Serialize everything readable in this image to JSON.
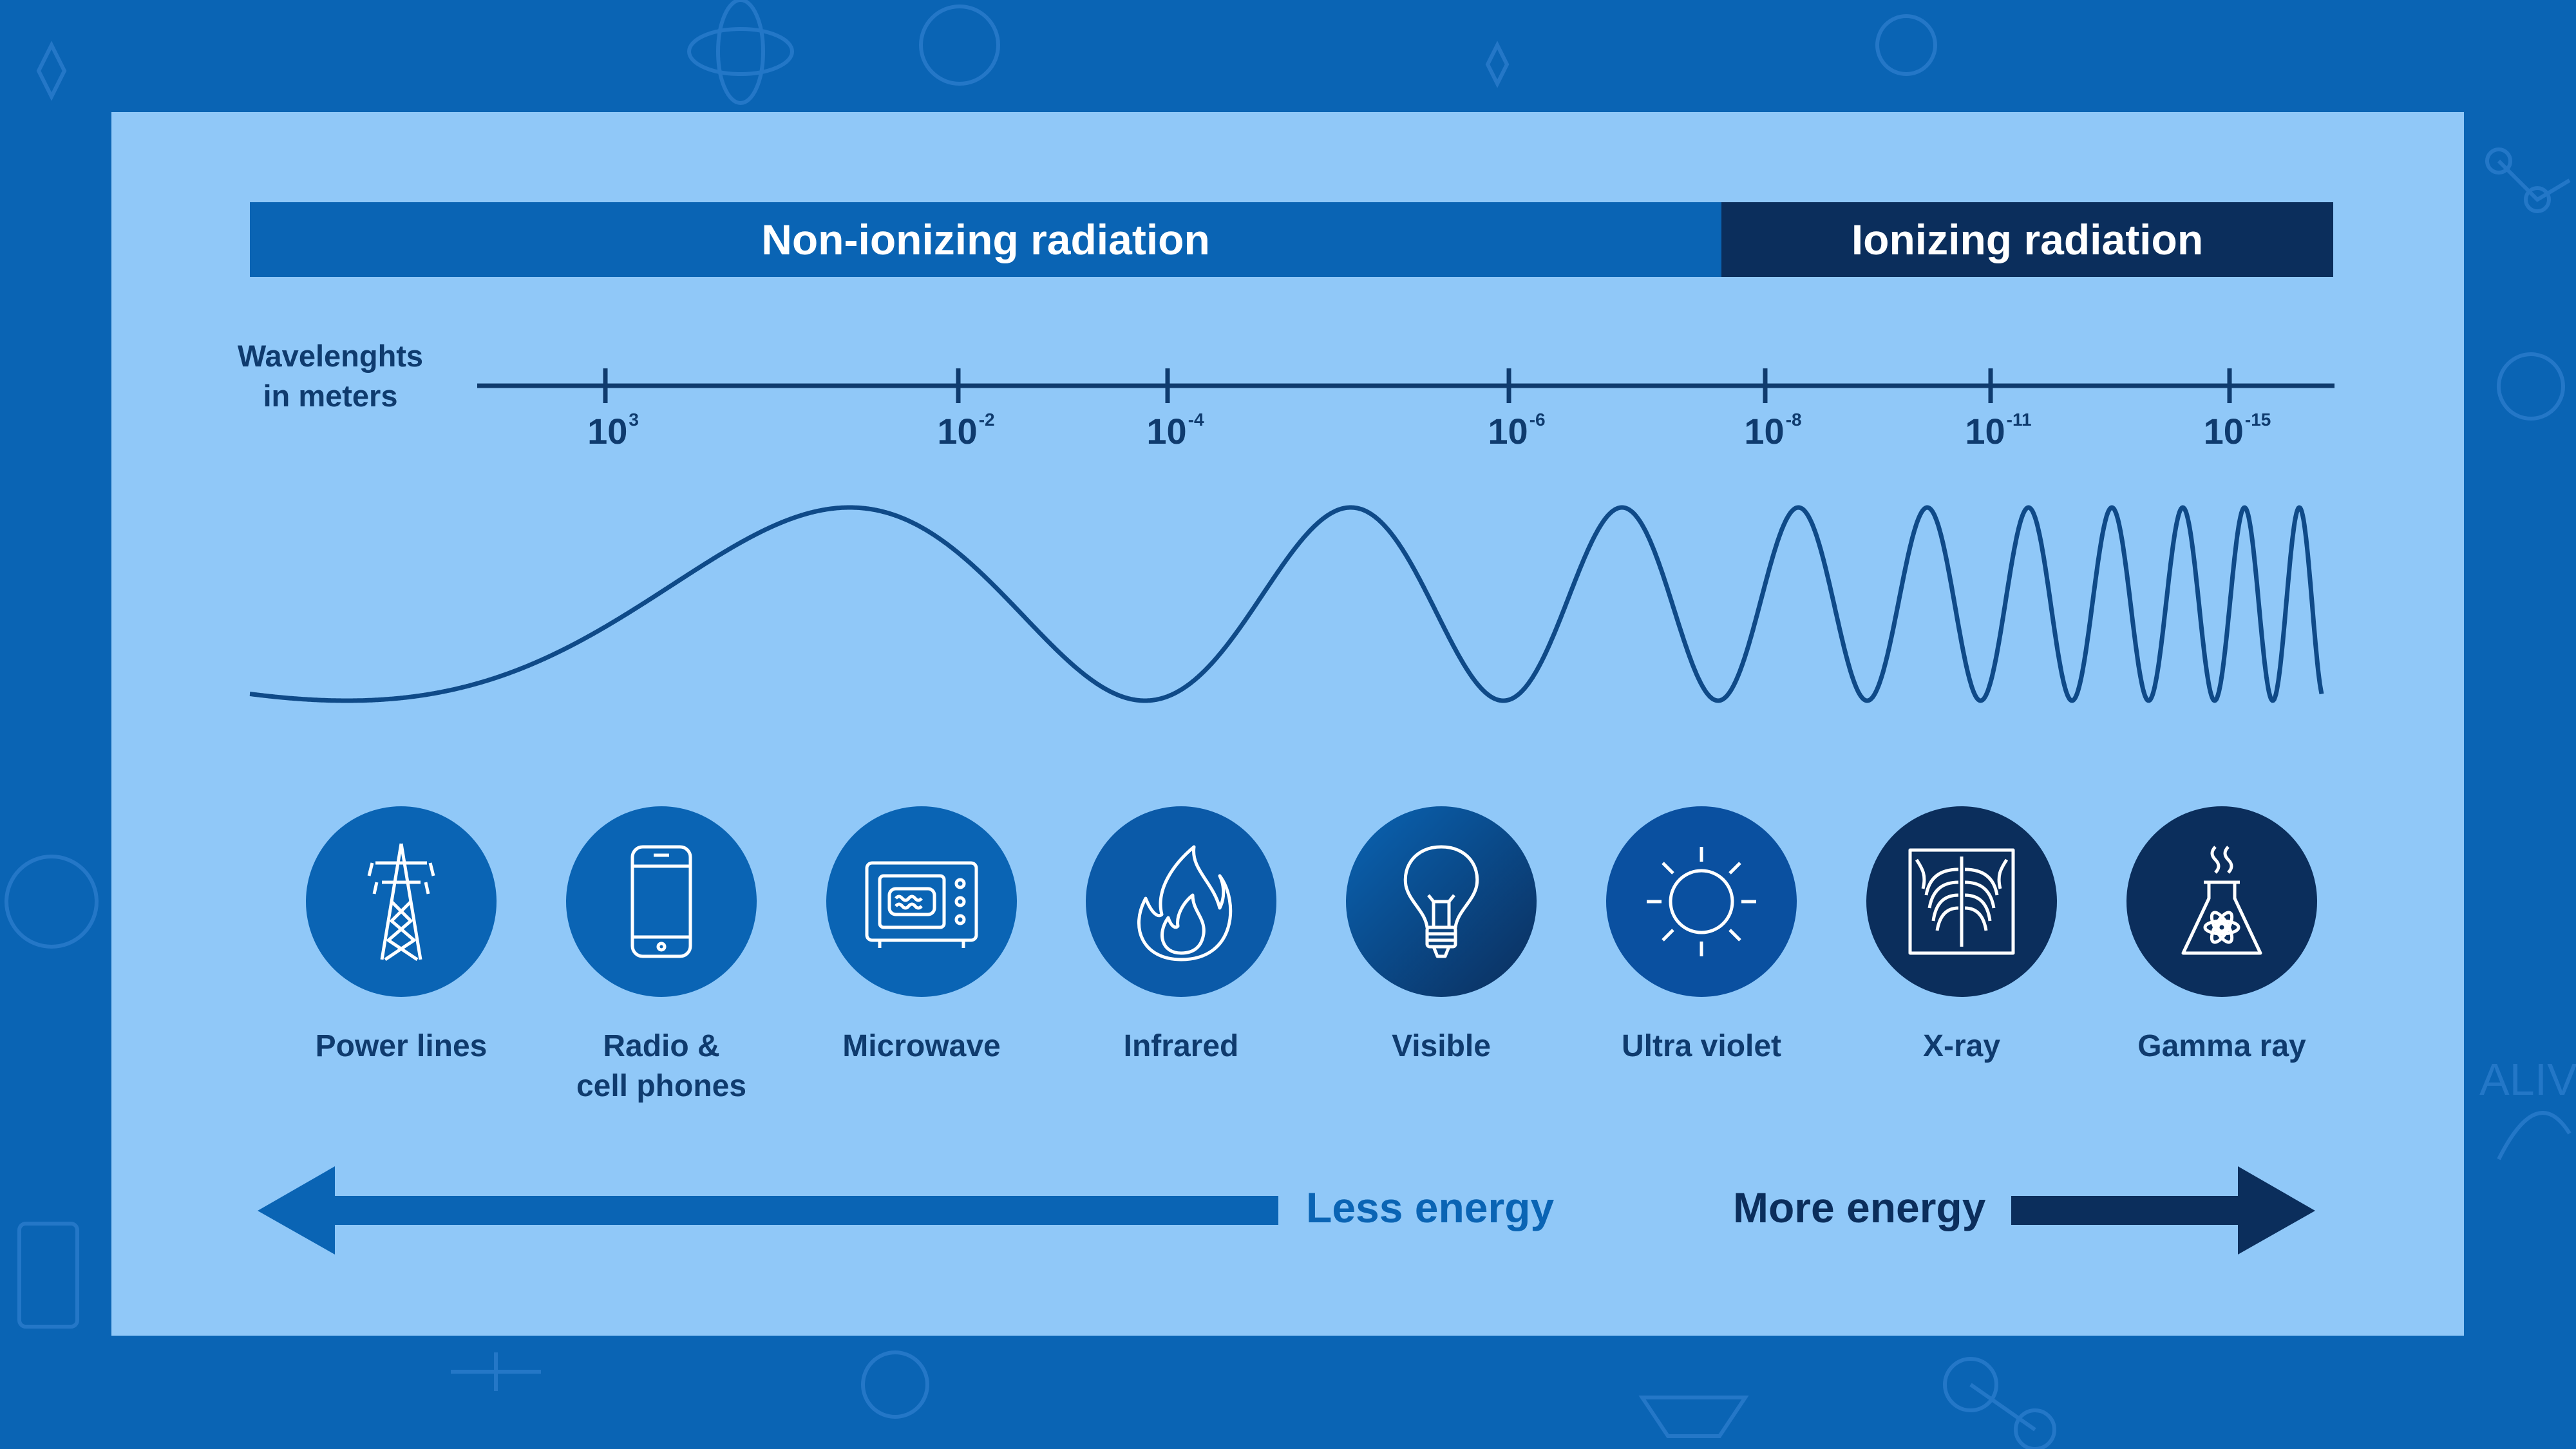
{
  "header": {
    "non_ionizing": "Non-ionizing radiation",
    "ionizing": "Ionizing radiation"
  },
  "scale": {
    "label_line1": "Wavelenghts",
    "label_line2": "in meters",
    "ticks": [
      {
        "base": "10",
        "exp": "3"
      },
      {
        "base": "10",
        "exp": "-2"
      },
      {
        "base": "10",
        "exp": "-4"
      },
      {
        "base": "10",
        "exp": "-6"
      },
      {
        "base": "10",
        "exp": "-8"
      },
      {
        "base": "10",
        "exp": "-11"
      },
      {
        "base": "10",
        "exp": "-15"
      }
    ]
  },
  "spectrum": [
    {
      "label_line1": "Power lines",
      "label_line2": "",
      "icon": "power-tower-icon"
    },
    {
      "label_line1": "Radio &",
      "label_line2": "cell phones",
      "icon": "phone-icon"
    },
    {
      "label_line1": "Microwave",
      "label_line2": "",
      "icon": "microwave-icon"
    },
    {
      "label_line1": "Infrared",
      "label_line2": "",
      "icon": "flame-icon"
    },
    {
      "label_line1": "Visible",
      "label_line2": "",
      "icon": "light-bulb-icon"
    },
    {
      "label_line1": "Ultra violet",
      "label_line2": "",
      "icon": "sun-icon"
    },
    {
      "label_line1": "X-ray",
      "label_line2": "",
      "icon": "xray-ribcage-icon"
    },
    {
      "label_line1": "Gamma ray",
      "label_line2": "",
      "icon": "radioactive-flask-icon"
    }
  ],
  "energy": {
    "less": "Less energy",
    "more": "More energy"
  },
  "colors": {
    "background": "#0a64b4",
    "panel": "#90c8f8",
    "non_ionizing": "#0a64b4",
    "ionizing": "#0b2e5c",
    "text_dark": "#0f3b6e"
  }
}
